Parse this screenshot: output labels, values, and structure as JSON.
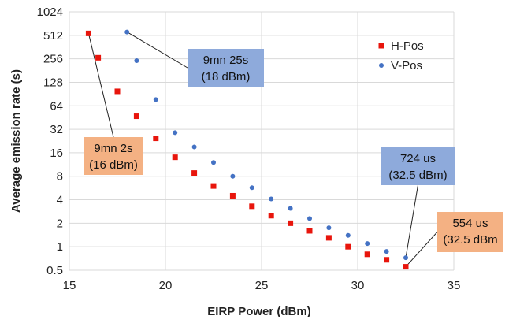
{
  "chart_data": {
    "type": "scatter",
    "title": "",
    "xlabel": "EIRP Power (dBm)",
    "ylabel": "Average emission rate (s)",
    "xlim": [
      15,
      35
    ],
    "ylim": [
      0.5,
      1024
    ],
    "yscale": "log2",
    "grid": true,
    "legend_position": "top-right",
    "x_ticks": [
      "15",
      "20",
      "25",
      "30",
      "35"
    ],
    "y_ticks": [
      "0.5",
      "1",
      "2",
      "4",
      "8",
      "16",
      "32",
      "64",
      "128",
      "256",
      "512",
      "1024"
    ],
    "series": [
      {
        "name": "H-Pos",
        "marker": "square",
        "color": "#e8150c",
        "x": [
          16,
          16.5,
          17.5,
          18.5,
          19.5,
          20.5,
          21.5,
          22.5,
          23.5,
          24.5,
          25.5,
          26.5,
          27.5,
          28.5,
          29.5,
          30.5,
          31.5,
          32.5
        ],
        "y": [
          542,
          264,
          98,
          47,
          24.5,
          14,
          8.8,
          6.0,
          4.5,
          3.3,
          2.5,
          2.0,
          1.6,
          1.3,
          1.0,
          0.8,
          0.68,
          0.554
        ]
      },
      {
        "name": "V-Pos",
        "marker": "circle",
        "color": "#4472c4",
        "x": [
          18,
          18.5,
          19.5,
          20.5,
          21.5,
          22.5,
          23.5,
          24.5,
          25.5,
          26.5,
          27.5,
          28.5,
          29.5,
          30.5,
          31.5,
          32.5
        ],
        "y": [
          565,
          242,
          77,
          29,
          19,
          12,
          8,
          5.7,
          4.1,
          3.1,
          2.3,
          1.75,
          1.4,
          1.1,
          0.87,
          0.724
        ]
      }
    ],
    "annotations": [
      {
        "lines": [
          "9mn 25s",
          "(18 dBm)"
        ],
        "fill": "#8eaadb",
        "target_series": 1,
        "target_index": 0
      },
      {
        "lines": [
          "9mn 2s",
          "(16 dBm)"
        ],
        "fill": "#f4b183",
        "target_series": 0,
        "target_index": 0
      },
      {
        "lines": [
          "724 us",
          "(32.5 dBm)"
        ],
        "fill": "#8eaadb",
        "target_series": 1,
        "target_index": 15
      },
      {
        "lines": [
          "554 us",
          "(32.5 dBm"
        ],
        "fill": "#f4b183",
        "target_series": 0,
        "target_index": 17
      }
    ]
  }
}
